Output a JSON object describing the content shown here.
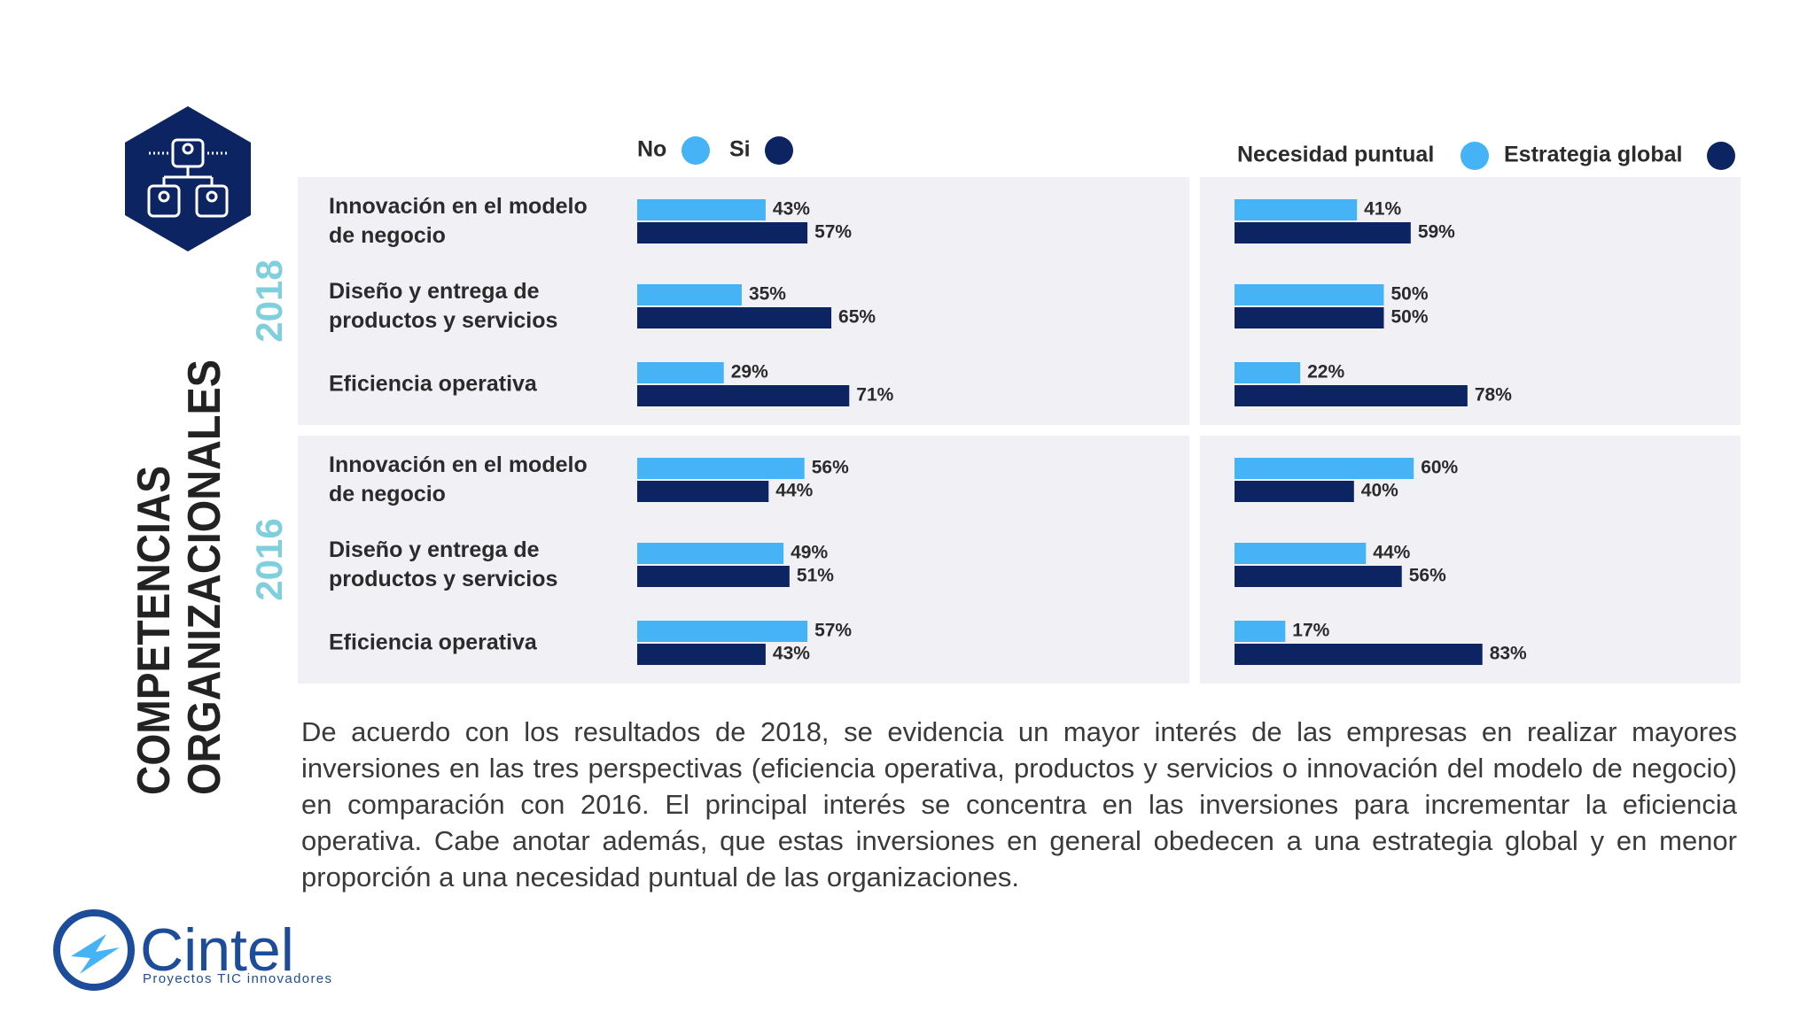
{
  "title_lines": [
    "COMPETENCIAS",
    "ORGANIZACIONALES"
  ],
  "chart_data": [
    {
      "type": "bar",
      "orientation": "horizontal",
      "year": "2018",
      "categories": [
        "Innovación en el modelo\nde negocio",
        "Diseño y entrega de\nproductos y servicios",
        "Eficiencia operativa"
      ],
      "xlim": [
        0,
        100
      ],
      "series": [
        {
          "name": "No",
          "color": "#45b3f5",
          "values": [
            43,
            35,
            29
          ],
          "value_labels": [
            "43%",
            "35%",
            "29%"
          ]
        },
        {
          "name": "Si",
          "color": "#0d2463",
          "values": [
            57,
            65,
            71
          ],
          "value_labels": [
            "57%",
            "65%",
            "71%"
          ]
        },
        {
          "name": "Necesidad puntual",
          "color": "#45b3f5",
          "values": [
            41,
            50,
            22
          ],
          "value_labels": [
            "41%",
            "50%",
            "22%"
          ]
        },
        {
          "name": "Estrategia global",
          "color": "#0d2463",
          "values": [
            59,
            50,
            78
          ],
          "value_labels": [
            "59%",
            "50%",
            "78%"
          ]
        }
      ]
    },
    {
      "type": "bar",
      "orientation": "horizontal",
      "year": "2016",
      "categories": [
        "Innovación en el modelo\nde negocio",
        "Diseño y entrega de\nproductos y servicios",
        "Eficiencia operativa"
      ],
      "xlim": [
        0,
        100
      ],
      "series": [
        {
          "color": "#45b3f5",
          "values": [
            56,
            49,
            57
          ],
          "value_labels": [
            "56%",
            "49%",
            "57%"
          ]
        },
        {
          "color": "#0d2463",
          "values": [
            44,
            51,
            43
          ],
          "value_labels": [
            "44%",
            "51%",
            "43%"
          ]
        },
        {
          "color": "#45b3f5",
          "values": [
            60,
            44,
            17
          ],
          "value_labels": [
            "60%",
            "44%",
            "17%"
          ]
        },
        {
          "color": "#0d2463",
          "values": [
            40,
            56,
            83
          ],
          "value_labels": [
            "40%",
            "56%",
            "83%"
          ]
        }
      ]
    }
  ],
  "paragraph": "De acuerdo con los resultados de 2018, se evidencia un mayor interés de las empresas en realizar mayores inversiones en las tres perspectivas (eficiencia operativa, productos y servicios o innovación del modelo de negocio) en comparación con 2016. El principal interés se concentra en las inversiones para incrementar la eficiencia operativa. Cabe anotar además, que estas inversiones en general obedecen a una estrategia global y en menor proporción a una necesidad puntual de las organizaciones.",
  "logo": {
    "name": "Cintel",
    "tagline": "Proyectos TIC innovadores"
  }
}
